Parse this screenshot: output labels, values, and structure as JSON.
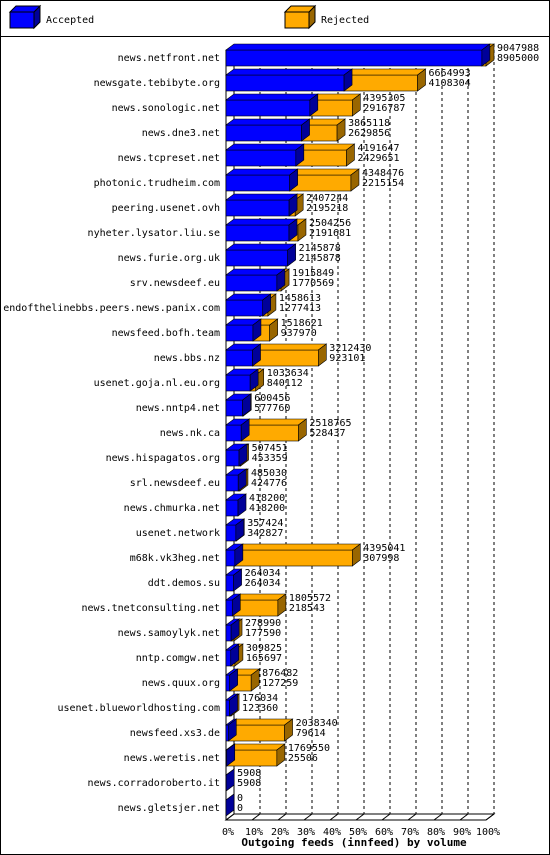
{
  "chart_data": {
    "type": "bar",
    "title": "Outgoing feeds (innfeed) by volume",
    "legend": [
      {
        "name": "Accepted",
        "color": "#0000ff"
      },
      {
        "name": "Rejected",
        "color": "#ffaa00"
      }
    ],
    "categories": [
      "news.netfront.net",
      "newsgate.tebibyte.org",
      "news.sonologic.net",
      "news.dne3.net",
      "news.tcpreset.net",
      "photonic.trudheim.com",
      "peering.usenet.ovh",
      "nyheter.lysator.liu.se",
      "news.furie.org.uk",
      "srv.newsdeef.eu",
      "endofthelinebbs.peers.news.panix.com",
      "newsfeed.bofh.team",
      "news.bbs.nz",
      "usenet.goja.nl.eu.org",
      "news.nntp4.net",
      "news.nk.ca",
      "news.hispagatos.org",
      "srl.newsdeef.eu",
      "news.chmurka.net",
      "usenet.network",
      "m68k.vk3heg.net",
      "ddt.demos.su",
      "news.tnetconsulting.net",
      "news.samoylyk.net",
      "nntp.comgw.net",
      "news.quux.org",
      "usenet.blueworldhosting.com",
      "newsfeed.xs3.de",
      "news.weretis.net",
      "news.corradoroberto.it",
      "news.gletsjer.net"
    ],
    "totals": [
      9047988,
      6664993,
      4395305,
      3865118,
      4191647,
      4348476,
      2407244,
      2504256,
      2145878,
      1915849,
      1458613,
      1518621,
      3212430,
      1033634,
      600456,
      2518765,
      507451,
      485030,
      418200,
      357424,
      4395041,
      264034,
      1805572,
      278990,
      309825,
      876482,
      176034,
      2038340,
      1769550,
      5908,
      0
    ],
    "accepted": [
      8905000,
      4108304,
      2916787,
      2629856,
      2429651,
      2215154,
      2195218,
      2191681,
      2145878,
      1770569,
      1277413,
      937970,
      923101,
      840112,
      577760,
      528437,
      453359,
      424776,
      418200,
      342827,
      307998,
      264034,
      218543,
      177590,
      165697,
      127259,
      123360,
      79614,
      25506,
      5908,
      0
    ],
    "xlim": [
      0,
      9047988
    ],
    "xticks": [
      {
        "value": 0,
        "label": "0%"
      },
      {
        "value": 904798.8,
        "label": "10%"
      },
      {
        "value": 1809597.6,
        "label": "20%"
      },
      {
        "value": 2714396.4,
        "label": "30%"
      },
      {
        "value": 3619195.2,
        "label": "40%"
      },
      {
        "value": 4523994,
        "label": "50%"
      },
      {
        "value": 5428792.8,
        "label": "60%"
      },
      {
        "value": 6333591.6,
        "label": "70%"
      },
      {
        "value": 7238390.4,
        "label": "80%"
      },
      {
        "value": 8143189.2,
        "label": "90%"
      },
      {
        "value": 9047988,
        "label": "100%"
      }
    ],
    "grid": true
  }
}
